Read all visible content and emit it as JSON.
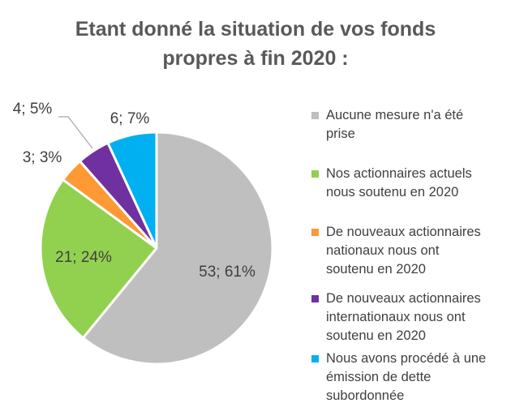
{
  "chart_data": {
    "type": "pie",
    "title": [
      "Etant donné la situation de vos fonds",
      "propres à fin 2020 :"
    ],
    "slices": [
      {
        "name": "Aucune mesure n'a été prise",
        "value": 53,
        "percent": "61%",
        "label": "53; 61%",
        "color": "#BFBFBF"
      },
      {
        "name": "Nos actionnaires actuels nous soutenu en 2020",
        "value": 21,
        "percent": "24%",
        "label": "21; 24%",
        "color": "#92D050"
      },
      {
        "name": "De nouveaux actionnaires nationaux nous ont soutenu en 2020",
        "value": 3,
        "percent": "3%",
        "label": "3; 3%",
        "color": "#FF9933"
      },
      {
        "name": "De nouveaux actionnaires internationaux nous ont soutenu en 2020",
        "value": 4,
        "percent": "5%",
        "label": "4; 5%",
        "color": "#7030A0"
      },
      {
        "name": "Nous avons procédé à une émission de dette subordonnée",
        "value": 6,
        "percent": "7%",
        "label": "6; 7%",
        "color": "#00B0F0"
      }
    ],
    "legend": {
      "position": "right",
      "items": [
        [
          "Aucune mesure n'a été",
          "prise"
        ],
        [
          "Nos actionnaires actuels",
          "nous soutenu en 2020"
        ],
        [
          "De nouveaux actionnaires",
          "nationaux nous ont",
          "soutenu en 2020"
        ],
        [
          "De nouveaux actionnaires",
          "internationaux nous ont",
          "soutenu en 2020"
        ],
        [
          "Nous avons procédé à une",
          "émission de dette",
          "subordonnée"
        ]
      ]
    }
  }
}
